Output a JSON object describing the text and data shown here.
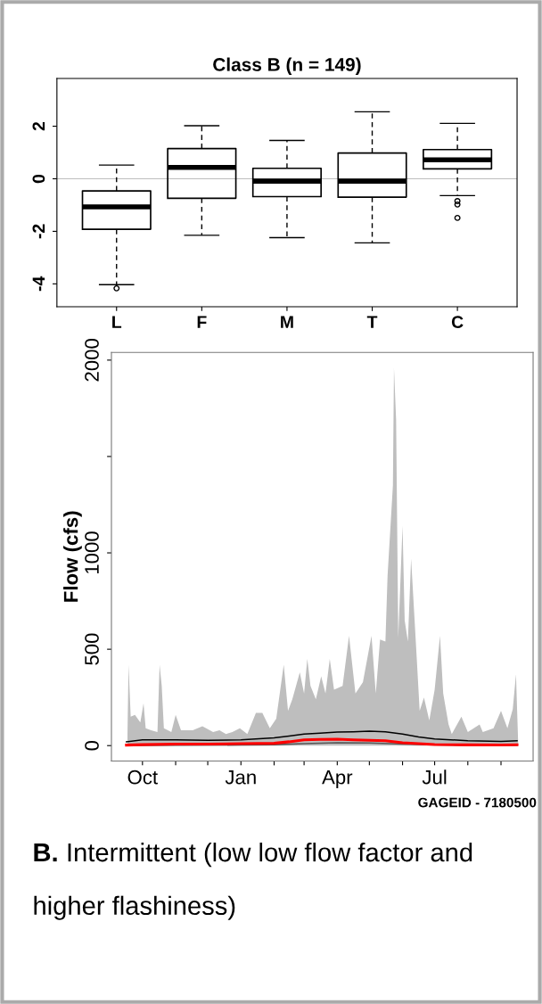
{
  "chart_data": [
    {
      "type": "box",
      "title": "Class B (n = 149)",
      "categories": [
        "L",
        "F",
        "M",
        "T",
        "C"
      ],
      "boxes": [
        {
          "low": -4.03,
          "q1": -1.92,
          "median": -1.07,
          "q3": -0.46,
          "high": 0.52,
          "outliers": [
            -4.17
          ]
        },
        {
          "low": -2.15,
          "q1": -0.74,
          "median": 0.43,
          "q3": 1.15,
          "high": 2.02
        },
        {
          "low": -2.24,
          "q1": -0.68,
          "median": -0.09,
          "q3": 0.4,
          "high": 1.46
        },
        {
          "low": -2.44,
          "q1": -0.7,
          "median": -0.09,
          "q3": 0.98,
          "high": 2.55
        },
        {
          "low": -0.64,
          "q1": 0.38,
          "median": 0.72,
          "q3": 1.11,
          "high": 2.11,
          "outliers": [
            -0.85,
            -0.98,
            -1.49
          ]
        }
      ],
      "ylim": [
        -4.87,
        3.82
      ],
      "yticks": [
        -4,
        -2,
        0,
        2
      ],
      "ref_lines": [
        {
          "axis": "y",
          "value": 0,
          "color": "#bebebe"
        }
      ]
    },
    {
      "type": "line",
      "ylabel": "Flow (cfs)",
      "series": [
        {
          "type": "area",
          "color": "#bebebe",
          "x": [
            "2000-09-17",
            "2000-09-18",
            "2000-09-20",
            "2000-09-24",
            "2000-09-29",
            "2000-10-02",
            "2000-10-04",
            "2000-10-09",
            "2000-10-15",
            "2000-10-17",
            "2000-10-19",
            "2000-10-21",
            "2000-10-28",
            "2000-11-01",
            "2000-11-06",
            "2000-11-17",
            "2000-11-26",
            "2000-12-06",
            "2000-12-12",
            "2000-12-18",
            "2000-12-24",
            "2000-12-31",
            "2001-01-07",
            "2001-01-15",
            "2001-01-21",
            "2001-01-28",
            "2001-02-03",
            "2001-02-10",
            "2001-02-14",
            "2001-02-18",
            "2001-02-25",
            "2001-03-01",
            "2001-03-04",
            "2001-03-07",
            "2001-03-12",
            "2001-03-17",
            "2001-03-21",
            "2001-03-25",
            "2001-03-29",
            "2001-04-06",
            "2001-04-12",
            "2001-04-18",
            "2001-04-25",
            "2001-05-03",
            "2001-05-07",
            "2001-05-11",
            "2001-05-16",
            "2001-05-18",
            "2001-05-23",
            "2001-05-24",
            "2001-05-26",
            "2001-05-28",
            "2001-06-01",
            "2001-06-03",
            "2001-06-06",
            "2001-06-09",
            "2001-06-14",
            "2001-06-17",
            "2001-06-21",
            "2001-06-26",
            "2001-07-01",
            "2001-07-06",
            "2001-07-09",
            "2001-07-14",
            "2001-07-17",
            "2001-07-26",
            "2001-08-01",
            "2001-08-12",
            "2001-08-15",
            "2001-08-25",
            "2001-09-01",
            "2001-09-07",
            "2001-09-12",
            "2001-09-15",
            "2001-09-17"
          ],
          "values": [
            60,
            420,
            150,
            160,
            120,
            220,
            90,
            80,
            70,
            420,
            310,
            90,
            70,
            160,
            80,
            80,
            100,
            70,
            80,
            60,
            70,
            90,
            60,
            170,
            170,
            90,
            140,
            420,
            180,
            240,
            380,
            270,
            450,
            310,
            240,
            360,
            270,
            450,
            290,
            310,
            570,
            270,
            330,
            570,
            270,
            550,
            540,
            880,
            1350,
            1960,
            1690,
            560,
            1140,
            650,
            540,
            970,
            480,
            180,
            250,
            130,
            290,
            570,
            270,
            110,
            60,
            150,
            70,
            110,
            70,
            90,
            180,
            90,
            190,
            370,
            20
          ]
        },
        {
          "color": "#000000",
          "x": [
            "2000-09-16",
            "2000-10-01",
            "2000-11-01",
            "2000-12-01",
            "2001-01-01",
            "2001-02-01",
            "2001-02-15",
            "2001-03-01",
            "2001-03-16",
            "2001-04-01",
            "2001-04-16",
            "2001-05-01",
            "2001-05-16",
            "2001-06-01",
            "2001-06-16",
            "2001-07-01",
            "2001-08-01",
            "2001-09-01",
            "2001-09-16"
          ],
          "values": [
            20,
            30,
            30,
            28,
            30,
            40,
            50,
            60,
            65,
            70,
            72,
            75,
            72,
            60,
            45,
            35,
            25,
            22,
            25
          ]
        },
        {
          "color": "#555555",
          "x": [
            "2000-09-16",
            "2000-11-01",
            "2001-01-01",
            "2001-02-01",
            "2001-03-01",
            "2001-04-01",
            "2001-05-01",
            "2001-06-01",
            "2001-07-01",
            "2001-08-01",
            "2001-09-16"
          ],
          "values": [
            1,
            2,
            3,
            5,
            10,
            15,
            14,
            8,
            4,
            2,
            2
          ]
        },
        {
          "color": "#ff0000",
          "x": [
            "2000-09-16",
            "2000-10-01",
            "2000-11-01",
            "2000-12-01",
            "2001-01-01",
            "2001-02-01",
            "2001-02-15",
            "2001-03-01",
            "2001-03-16",
            "2001-04-01",
            "2001-04-16",
            "2001-05-01",
            "2001-05-16",
            "2001-06-01",
            "2001-06-16",
            "2001-07-01",
            "2001-08-01",
            "2001-09-01",
            "2001-09-16"
          ],
          "values": [
            3,
            5,
            8,
            8,
            10,
            12,
            20,
            30,
            32,
            33,
            30,
            28,
            25,
            15,
            10,
            6,
            4,
            3,
            4
          ]
        }
      ],
      "xlim": [
        "2000-09-02",
        "2001-10-01"
      ],
      "xticks": [
        {
          "value": "2000-10-01",
          "label": "Oct"
        },
        {
          "value": "2000-11-01",
          "label": null
        },
        {
          "value": "2000-12-01",
          "label": null
        },
        {
          "value": "2001-01-01",
          "label": "Jan"
        },
        {
          "value": "2001-02-01",
          "label": null
        },
        {
          "value": "2001-03-01",
          "label": null
        },
        {
          "value": "2001-04-01",
          "label": "Apr"
        },
        {
          "value": "2001-05-01",
          "label": null
        },
        {
          "value": "2001-06-01",
          "label": null
        },
        {
          "value": "2001-07-01",
          "label": "Jul"
        },
        {
          "value": "2001-08-01",
          "label": null
        },
        {
          "value": "2001-09-01",
          "label": null
        }
      ],
      "ylim": [
        -80,
        2040
      ],
      "yticks": [
        0,
        500,
        1000,
        {
          "value": 1500,
          "label": null
        },
        2000
      ],
      "annotations": [
        "GAGEID - 7180500",
        "B.",
        "Intermittent (low low flow factor and higher flashiness)"
      ]
    }
  ]
}
